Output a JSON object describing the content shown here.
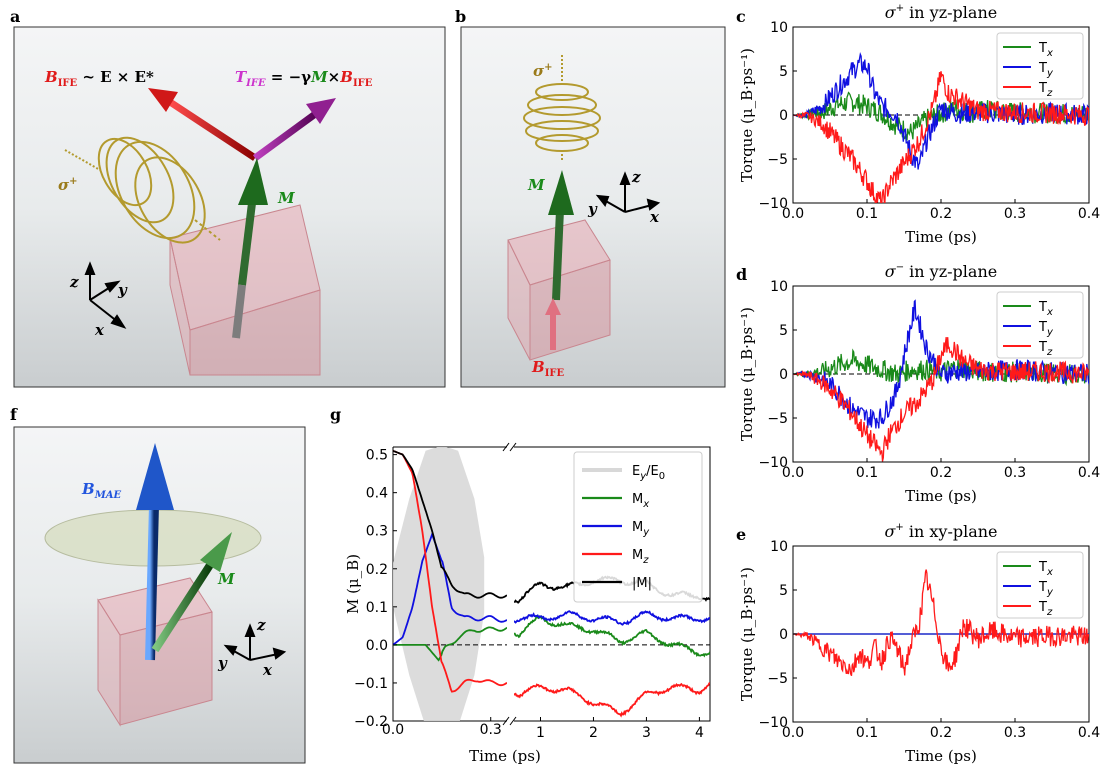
{
  "panel_labels": {
    "a": "a",
    "b": "b",
    "c": "c",
    "d": "d",
    "e": "e",
    "f": "f",
    "g": "g"
  },
  "colors": {
    "x": "#1a8a1a",
    "y": "#1010e0",
    "z": "#ff1a1a",
    "mag": "#000000",
    "field": "#d8d8d8"
  },
  "scenes": {
    "a": {
      "bife_sym": "B",
      "bife_sub": "IFE",
      "bife_rel": " ~ E × E*",
      "tife_sym": "T",
      "tife_sub": "IFE",
      "tife_rel": " = −γ",
      "tife_m": "M",
      "tife_times": "×",
      "tife_b": "B",
      "tife_bsub": "IFE",
      "m": "M",
      "sigma": "σ",
      "sigma_sup": "+",
      "ax_x": "x",
      "ax_y": "y",
      "ax_z": "z"
    },
    "b": {
      "sigma": "σ",
      "sigma_sup": "+",
      "m": "M",
      "bife_sym": "B",
      "bife_sub": "IFE",
      "ax_x": "x",
      "ax_y": "y",
      "ax_z": "z"
    },
    "f": {
      "bmae_sym": "B",
      "bmae_sub": "MAE",
      "m": "M",
      "ax_x": "x",
      "ax_y": "y",
      "ax_z": "z"
    }
  },
  "chart_data": [
    {
      "panel": "c",
      "type": "line",
      "title": "σ⁺ in yz-plane",
      "title_base": "σ",
      "title_sup": "+",
      "title_rest": " in yz-plane",
      "xlabel": "Time (ps)",
      "ylabel": "Torque (μ_B·ps⁻¹)",
      "xlim": [
        0,
        0.4
      ],
      "ylim": [
        -10,
        10
      ],
      "xticks": [
        "0.0",
        "0.1",
        "0.2",
        "0.3",
        "0.4"
      ],
      "yticks": [
        "10",
        "5",
        "0",
        "−5",
        "−10"
      ],
      "legend_position": "top-right",
      "series": [
        {
          "name": "Tx",
          "key": "x",
          "x": [
            0,
            0.02,
            0.04,
            0.06,
            0.08,
            0.1,
            0.12,
            0.14,
            0.16,
            0.18,
            0.2,
            0.22,
            0.24,
            0.26,
            0.3,
            0.35,
            0.4
          ],
          "values": [
            0,
            0,
            0.3,
            1.2,
            1.5,
            1,
            0.2,
            -1.2,
            -2,
            -0.5,
            0.2,
            0.8,
            0.2,
            0.6,
            0.3,
            0.2,
            0.1
          ]
        },
        {
          "name": "Ty",
          "key": "y",
          "x": [
            0,
            0.02,
            0.04,
            0.06,
            0.08,
            0.09,
            0.1,
            0.11,
            0.12,
            0.14,
            0.16,
            0.17,
            0.18,
            0.2,
            0.22,
            0.25,
            0.3,
            0.35,
            0.4
          ],
          "values": [
            0,
            0,
            1,
            3,
            5,
            5.8,
            5.5,
            2.5,
            1,
            0,
            -4.5,
            -6,
            -3,
            0.8,
            0.2,
            0.3,
            0,
            0.2,
            0
          ]
        },
        {
          "name": "Tz",
          "key": "z",
          "x": [
            0,
            0.02,
            0.04,
            0.06,
            0.08,
            0.1,
            0.11,
            0.12,
            0.13,
            0.15,
            0.17,
            0.19,
            0.2,
            0.21,
            0.23,
            0.25,
            0.3,
            0.35,
            0.4
          ],
          "values": [
            0,
            -0.1,
            -1,
            -3,
            -5,
            -7.5,
            -9,
            -10,
            -8,
            -5.5,
            -3,
            1,
            4.5,
            2.5,
            1.5,
            0.5,
            0.3,
            0.2,
            0
          ]
        }
      ]
    },
    {
      "panel": "d",
      "type": "line",
      "title": "σ⁻ in yz-plane",
      "title_base": "σ",
      "title_sup": "−",
      "title_rest": " in yz-plane",
      "xlabel": "Time (ps)",
      "ylabel": "Torque (μ_B·ps⁻¹)",
      "xlim": [
        0,
        0.4
      ],
      "ylim": [
        -10,
        10
      ],
      "xticks": [
        "0.0",
        "0.1",
        "0.2",
        "0.3",
        "0.4"
      ],
      "yticks": [
        "10",
        "5",
        "0",
        "−5",
        "−10"
      ],
      "legend_position": "top-right",
      "series": [
        {
          "name": "Tx",
          "key": "x",
          "x": [
            0,
            0.02,
            0.04,
            0.06,
            0.08,
            0.1,
            0.12,
            0.14,
            0.16,
            0.18,
            0.2,
            0.22,
            0.25,
            0.3,
            0.35,
            0.4
          ],
          "values": [
            0,
            0,
            0.3,
            1,
            1.5,
            1,
            0.5,
            0,
            0.5,
            0.5,
            0.2,
            0.8,
            0.3,
            0.2,
            0.1,
            0
          ]
        },
        {
          "name": "Ty",
          "key": "y",
          "x": [
            0,
            0.02,
            0.04,
            0.06,
            0.08,
            0.1,
            0.12,
            0.14,
            0.155,
            0.165,
            0.18,
            0.2,
            0.22,
            0.25,
            0.3,
            0.35,
            0.4
          ],
          "values": [
            0,
            0,
            -0.5,
            -2,
            -4,
            -5,
            -5,
            -2,
            4,
            7.5,
            3,
            0,
            0.3,
            0.2,
            0.5,
            0.2,
            0
          ]
        },
        {
          "name": "Tz",
          "key": "z",
          "x": [
            0,
            0.02,
            0.04,
            0.06,
            0.08,
            0.1,
            0.12,
            0.13,
            0.15,
            0.17,
            0.19,
            0.2,
            0.21,
            0.23,
            0.25,
            0.3,
            0.35,
            0.4
          ],
          "values": [
            0,
            -0.1,
            -1,
            -2.5,
            -4.5,
            -7,
            -9,
            -7,
            -4.5,
            -3,
            -0.5,
            2,
            3.5,
            1.5,
            0.5,
            0.2,
            0.3,
            0
          ]
        }
      ]
    },
    {
      "panel": "e",
      "type": "line",
      "title": "σ⁺ in xy-plane",
      "title_base": "σ",
      "title_sup": "+",
      "title_rest": " in xy-plane",
      "xlabel": "Time (ps)",
      "ylabel": "Torque (μ_B·ps⁻¹)",
      "xlim": [
        0,
        0.4
      ],
      "ylim": [
        -10,
        10
      ],
      "xticks": [
        "0.0",
        "0.1",
        "0.2",
        "0.3",
        "0.4"
      ],
      "yticks": [
        "10",
        "5",
        "0",
        "−5",
        "−10"
      ],
      "legend_position": "top-right",
      "series": [
        {
          "name": "Tx",
          "key": "x",
          "x": [
            0,
            0.4
          ],
          "values": [
            0,
            0
          ]
        },
        {
          "name": "Ty",
          "key": "y",
          "x": [
            0,
            0.4
          ],
          "values": [
            0,
            0
          ]
        },
        {
          "name": "Tz",
          "key": "z",
          "x": [
            0,
            0.02,
            0.04,
            0.06,
            0.08,
            0.09,
            0.1,
            0.11,
            0.12,
            0.13,
            0.14,
            0.15,
            0.16,
            0.17,
            0.18,
            0.19,
            0.2,
            0.21,
            0.22,
            0.23,
            0.25,
            0.27,
            0.3,
            0.35,
            0.4
          ],
          "values": [
            0,
            -0.2,
            -1.5,
            -3,
            -4,
            -2,
            -3.5,
            -1.5,
            -3,
            -0.5,
            -1.5,
            -4,
            -1,
            1,
            6.5,
            3,
            -1.5,
            -4,
            -2.5,
            1,
            -0.5,
            0.3,
            -0.5,
            -0.2,
            -0.3
          ]
        }
      ]
    },
    {
      "panel": "g",
      "type": "line",
      "xlabel": "Time (ps)",
      "ylabel": "M (μ_B)",
      "ylim": [
        -0.2,
        0.52
      ],
      "broken_x_axis": true,
      "segment1_xlim": [
        0,
        0.35
      ],
      "segment2_xlim": [
        0.5,
        4.2
      ],
      "xticks_left": [
        "0.0",
        "0.3"
      ],
      "xticks_right": [
        "1",
        "2",
        "3",
        "4"
      ],
      "yticks": [
        "0.5",
        "0.4",
        "0.3",
        "0.2",
        "0.1",
        "0.0",
        "−0.1",
        "−0.2"
      ],
      "legend_position": "top-right",
      "field_envelope": {
        "name": "E_y/E_0",
        "x": [
          0,
          0.05,
          0.1,
          0.15,
          0.2,
          0.25,
          0.28
        ],
        "half_width": [
          0.08,
          0.32,
          0.5,
          0.52,
          0.5,
          0.32,
          0.1
        ]
      },
      "series": [
        {
          "name": "Mx",
          "key": "x",
          "x": [
            0,
            0.05,
            0.1,
            0.12,
            0.14,
            0.16,
            0.2,
            0.25,
            0.3,
            0.35,
            0.6,
            1,
            1.5,
            2,
            2.5,
            3,
            3.5,
            4,
            4.2
          ],
          "values": [
            0,
            0,
            0,
            -0.02,
            -0.04,
            -0.01,
            0.02,
            0.04,
            0.04,
            0.045,
            0.03,
            0.07,
            0.05,
            0.04,
            0.01,
            0.03,
            0.0,
            -0.02,
            -0.02
          ]
        },
        {
          "name": "My",
          "key": "y",
          "x": [
            0,
            0.03,
            0.06,
            0.09,
            0.12,
            0.15,
            0.18,
            0.22,
            0.26,
            0.3,
            0.35,
            0.6,
            1,
            1.5,
            2,
            2.5,
            3,
            3.5,
            4,
            4.2
          ],
          "values": [
            0,
            0.02,
            0.1,
            0.22,
            0.29,
            0.22,
            0.1,
            0.07,
            0.07,
            0.07,
            0.065,
            0.07,
            0.07,
            0.08,
            0.07,
            0.06,
            0.08,
            0.07,
            0.07,
            0.07
          ]
        },
        {
          "name": "Mz",
          "key": "z",
          "x": [
            0,
            0.03,
            0.06,
            0.09,
            0.12,
            0.15,
            0.18,
            0.22,
            0.26,
            0.3,
            0.35,
            0.6,
            1,
            1.5,
            2,
            2.5,
            3,
            3.5,
            4,
            4.2
          ],
          "values": [
            0.51,
            0.5,
            0.45,
            0.3,
            0.1,
            -0.05,
            -0.12,
            -0.1,
            -0.09,
            -0.1,
            -0.1,
            -0.13,
            -0.11,
            -0.12,
            -0.15,
            -0.18,
            -0.13,
            -0.11,
            -0.12,
            -0.1
          ]
        },
        {
          "name": "|M|",
          "key": "mag",
          "x": [
            0,
            0.03,
            0.06,
            0.09,
            0.12,
            0.15,
            0.18,
            0.22,
            0.26,
            0.3,
            0.35,
            0.6,
            1,
            1.5,
            2,
            2.5,
            3,
            3.5,
            4,
            4.2
          ],
          "values": [
            0.51,
            0.5,
            0.46,
            0.38,
            0.3,
            0.2,
            0.16,
            0.13,
            0.13,
            0.13,
            0.13,
            0.12,
            0.16,
            0.15,
            0.17,
            0.17,
            0.16,
            0.13,
            0.13,
            0.12
          ]
        }
      ],
      "legend": [
        "E_y/E_0",
        "Mx",
        "My",
        "Mz",
        "|M|"
      ]
    }
  ]
}
